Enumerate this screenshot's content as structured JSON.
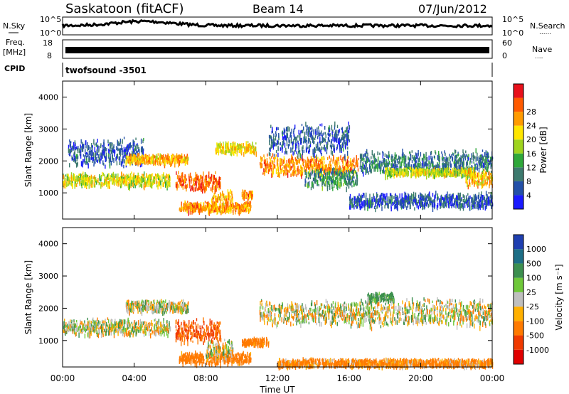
{
  "header": {
    "station": "Saskatoon (fitACF)",
    "beam": "Beam 14",
    "date": "07/Jun/2012"
  },
  "strip_labels": {
    "nsky": "N.Sky",
    "freq_line1": "Freq.",
    "freq_line2": "[MHz]",
    "cpid": "CPID",
    "nsearch": "N.Search",
    "nave": "Nave",
    "dots": "......",
    "nave_dots": "...."
  },
  "cpid_value": "twofsound -3501",
  "noise_ticks": [
    "10^5",
    "10^0"
  ],
  "noise_right_ticks": [
    "10^5",
    "10^0"
  ],
  "freq_ticks": [
    "18",
    "8"
  ],
  "nave_ticks": [
    "60",
    "0"
  ],
  "x_axis": {
    "label": "Time UT",
    "ticks": [
      "00:00",
      "04:00",
      "08:00",
      "12:00",
      "16:00",
      "20:00",
      "00:00"
    ],
    "range_hours": [
      0,
      24
    ]
  },
  "y_axis": {
    "label": "Slant Range [km]",
    "ticks": [
      "1000",
      "2000",
      "3000",
      "4000"
    ],
    "range_km": [
      180,
      4500
    ]
  },
  "power_scale": {
    "label": "Power [dB]",
    "ticks": [
      "4",
      "8",
      "12",
      "16",
      "20",
      "24",
      "28"
    ],
    "colors": [
      "#1a1aff",
      "#2350a8",
      "#3d7a6e",
      "#2fa83a",
      "#9fd41e",
      "#ffe600",
      "#ff9b00",
      "#ff5a00",
      "#e8111b"
    ]
  },
  "velocity_scale": {
    "label": "Velocity [m s⁻¹]",
    "ticks": [
      "1000",
      "500",
      "100",
      "25",
      "-25",
      "-100",
      "-500",
      "-1000"
    ],
    "colors": [
      "#1f3fb0",
      "#1d6e86",
      "#3c8f4f",
      "#6fc83a",
      "#bfbfbf",
      "#ffb000",
      "#ff7a00",
      "#f03a00",
      "#e00000"
    ]
  },
  "chart_data": {
    "type": "heatmap",
    "x_unit": "hours UT",
    "y_unit": "slant range km",
    "power_panel": {
      "scatter_bands": [
        {
          "t0": 0.0,
          "t1": 6.0,
          "r_center": 1450,
          "r_width": 350,
          "power": 18
        },
        {
          "t0": 0.3,
          "t1": 4.5,
          "r_center": 2300,
          "r_width": 700,
          "power": 6
        },
        {
          "t0": 3.5,
          "t1": 7.0,
          "r_center": 2100,
          "r_width": 250,
          "power": 22
        },
        {
          "t0": 6.3,
          "t1": 8.8,
          "r_center": 1400,
          "r_width": 450,
          "power": 26
        },
        {
          "t0": 6.5,
          "t1": 10.5,
          "r_center": 600,
          "r_width": 250,
          "power": 24
        },
        {
          "t0": 8.3,
          "t1": 9.5,
          "r_center": 800,
          "r_width": 600,
          "power": 22
        },
        {
          "t0": 8.5,
          "t1": 10.8,
          "r_center": 2450,
          "r_width": 300,
          "power": 20
        },
        {
          "t0": 10.0,
          "t1": 10.6,
          "r_center": 1000,
          "r_width": 200,
          "power": 24
        },
        {
          "t0": 11.0,
          "t1": 16.5,
          "r_center": 1900,
          "r_width": 500,
          "power": 24
        },
        {
          "t0": 11.5,
          "t1": 16.0,
          "r_center": 2700,
          "r_width": 800,
          "power": 6
        },
        {
          "t0": 13.5,
          "t1": 16.5,
          "r_center": 1500,
          "r_width": 500,
          "power": 10
        },
        {
          "t0": 16.5,
          "t1": 24.0,
          "r_center": 2000,
          "r_width": 600,
          "power": 8
        },
        {
          "t0": 16.0,
          "t1": 24.0,
          "r_center": 800,
          "r_width": 400,
          "power": 6
        },
        {
          "t0": 18.0,
          "t1": 23.0,
          "r_center": 1700,
          "r_width": 200,
          "power": 18
        },
        {
          "t0": 22.5,
          "t1": 24.0,
          "r_center": 1500,
          "r_width": 400,
          "power": 22
        }
      ]
    },
    "velocity_panel": {
      "scatter_bands": [
        {
          "t0": 0.0,
          "t1": 6.0,
          "r_center": 1450,
          "r_width": 400,
          "velocity": 0
        },
        {
          "t0": 3.5,
          "t1": 7.0,
          "r_center": 2100,
          "r_width": 300,
          "velocity": 0
        },
        {
          "t0": 6.3,
          "t1": 8.8,
          "r_center": 1350,
          "r_width": 600,
          "velocity": -300
        },
        {
          "t0": 6.5,
          "t1": 10.5,
          "r_center": 500,
          "r_width": 300,
          "velocity": -150
        },
        {
          "t0": 8.0,
          "t1": 9.5,
          "r_center": 750,
          "r_width": 500,
          "velocity": 0
        },
        {
          "t0": 10.0,
          "t1": 11.5,
          "r_center": 1000,
          "r_width": 200,
          "velocity": -150
        },
        {
          "t0": 11.0,
          "t1": 16.5,
          "r_center": 1900,
          "r_width": 600,
          "velocity": 0
        },
        {
          "t0": 12.0,
          "t1": 24.0,
          "r_center": 350,
          "r_width": 200,
          "velocity": -100
        },
        {
          "t0": 16.5,
          "t1": 24.0,
          "r_center": 1900,
          "r_width": 700,
          "velocity": 0
        },
        {
          "t0": 17.0,
          "t1": 18.5,
          "r_center": 2400,
          "r_width": 200,
          "velocity": 100
        }
      ]
    },
    "noise_sky_log10": 4.3,
    "frequency_mhz": 11.5
  }
}
